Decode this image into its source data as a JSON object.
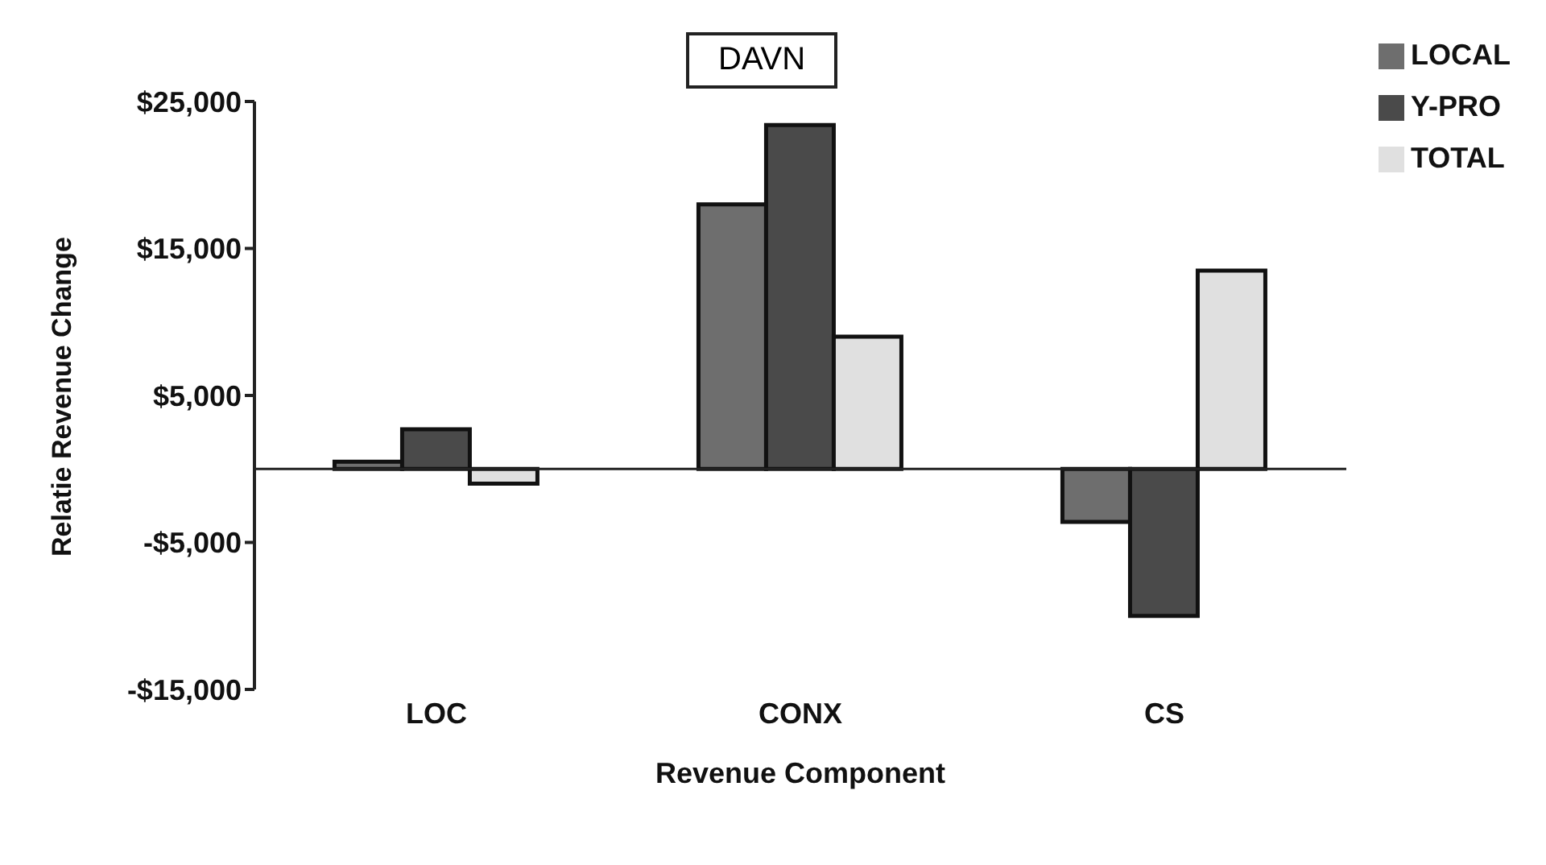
{
  "chart_data": {
    "type": "bar",
    "title": "DAVN",
    "xlabel": "Revenue Component",
    "ylabel": "Relatie Revenue Change",
    "categories": [
      "LOC",
      "CONX",
      "CS"
    ],
    "series": [
      {
        "name": "LOCAL",
        "color": "#6e6e6e",
        "values": [
          500,
          18000,
          -3600
        ]
      },
      {
        "name": "Y-PRO",
        "color": "#4a4a4a",
        "values": [
          2700,
          23400,
          -10000
        ]
      },
      {
        "name": "TOTAL",
        "color": "#e0e0e0",
        "values": [
          -1000,
          9000,
          13500
        ]
      }
    ],
    "ylim": [
      -15000,
      25000
    ],
    "yticks": [
      {
        "value": -15000,
        "label": "-$15,000"
      },
      {
        "value": -5000,
        "label": "-$5,000"
      },
      {
        "value": 5000,
        "label": "$5,000"
      },
      {
        "value": 15000,
        "label": "$15,000"
      },
      {
        "value": 25000,
        "label": "$25,000"
      }
    ],
    "grid": false,
    "legend": "top right"
  }
}
